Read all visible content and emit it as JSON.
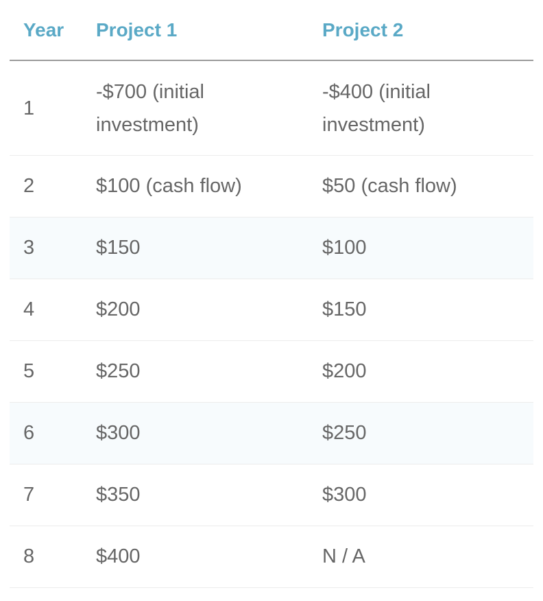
{
  "table": {
    "headers": {
      "year": "Year",
      "project1": "Project 1",
      "project2": "Project 2"
    },
    "rows": [
      {
        "year": "1",
        "project1": "-$700 (initial investment)",
        "project2": "-$400 (initial investment)"
      },
      {
        "year": "2",
        "project1": "$100 (cash flow)",
        "project2": "$50 (cash flow)"
      },
      {
        "year": "3",
        "project1": "$150",
        "project2": "$100"
      },
      {
        "year": "4",
        "project1": "$200",
        "project2": "$150"
      },
      {
        "year": "5",
        "project1": "$250",
        "project2": "$200"
      },
      {
        "year": "6",
        "project1": "$300",
        "project2": "$250"
      },
      {
        "year": "7",
        "project1": "$350",
        "project2": "$300"
      },
      {
        "year": "8",
        "project1": "$400",
        "project2": "N / A"
      }
    ]
  },
  "colors": {
    "header_text": "#5aa9c6",
    "body_text": "#666666",
    "header_rule": "#9a9a9a",
    "row_rule": "#ececec",
    "shaded_row": "#f7fbfd"
  }
}
